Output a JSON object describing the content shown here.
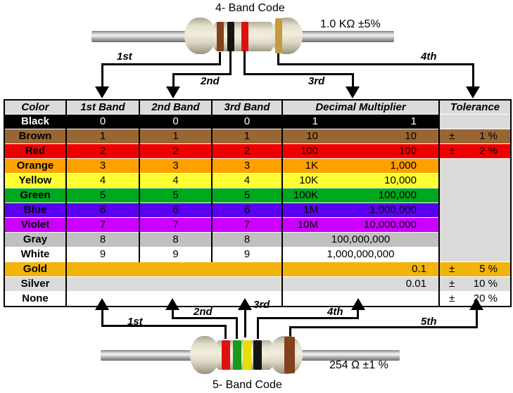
{
  "four_band": {
    "title": "4- Band Code",
    "spec": "1.0 KΩ  ±5%",
    "labels": [
      "1st",
      "2nd",
      "3rd",
      "4th"
    ],
    "bands": [
      "brown",
      "black",
      "red",
      "gold"
    ]
  },
  "five_band": {
    "title": "5- Band Code",
    "spec": "254 Ω  ±1 %",
    "labels": [
      "1st",
      "2nd",
      "3rd",
      "4th",
      "5th"
    ],
    "bands": [
      "red",
      "green",
      "yellow",
      "black",
      "brown"
    ]
  },
  "band_colors": {
    "brown": "#81421c",
    "black": "#141414",
    "red": "#dd1111",
    "gold": "#c79a3f",
    "green": "#1a9a1a",
    "yellow": "#e6de08"
  },
  "table": {
    "headers": [
      "Color",
      "1st Band",
      "2nd Band",
      "3rd Band",
      "Decimal Multiplier",
      "Tolerance"
    ],
    "rows": [
      {
        "name": "Black",
        "bg": "#000000",
        "fg": "#ffffff",
        "bands_merged": false,
        "b1": "0",
        "b2": "0",
        "b3": "0",
        "mult": {
          "layout": "split",
          "short": "1",
          "full": "1"
        },
        "tol": {
          "type": "own",
          "bg": "#dbdbdb",
          "pm": "",
          "val": ""
        }
      },
      {
        "name": "Brown",
        "bg": "#996633",
        "fg": "#000000",
        "bands_merged": false,
        "b1": "1",
        "b2": "1",
        "b3": "1",
        "mult": {
          "layout": "split",
          "short": "10",
          "full": "10"
        },
        "tol": {
          "type": "own",
          "bg": "#996633",
          "pm": "±",
          "val": "1 %"
        }
      },
      {
        "name": "Red",
        "bg": "#ee0000",
        "fg": "#000000",
        "bands_merged": false,
        "b1": "2",
        "b2": "2",
        "b3": "2",
        "mult": {
          "layout": "split",
          "short": "100",
          "full": "100"
        },
        "tol": {
          "type": "own",
          "bg": "#ee0000",
          "pm": "±",
          "val": "2 %"
        }
      },
      {
        "name": "Orange",
        "bg": "#ffa000",
        "fg": "#000000",
        "bands_merged": false,
        "b1": "3",
        "b2": "3",
        "b3": "3",
        "mult": {
          "layout": "split",
          "short": "1K",
          "full": "1,000"
        },
        "tol": {
          "type": "span",
          "rows": 7,
          "bg": "#dbdbdb"
        }
      },
      {
        "name": "Yellow",
        "bg": "#ffff33",
        "fg": "#000000",
        "bands_merged": false,
        "b1": "4",
        "b2": "4",
        "b3": "4",
        "mult": {
          "layout": "split",
          "short": "10K",
          "full": "10,000"
        },
        "tol": {
          "type": "none"
        }
      },
      {
        "name": "Green",
        "bg": "#00a81e",
        "fg": "#000000",
        "bands_merged": false,
        "b1": "5",
        "b2": "5",
        "b3": "5",
        "mult": {
          "layout": "split",
          "short": "100K",
          "full": "100,000"
        },
        "tol": {
          "type": "none"
        }
      },
      {
        "name": "Blue",
        "bg": "#5a00f0",
        "fg": "#000000",
        "bands_merged": false,
        "b1": "6",
        "b2": "6",
        "b3": "6",
        "mult": {
          "layout": "split",
          "short": "1M",
          "full": "1,000,000"
        },
        "tol": {
          "type": "none"
        }
      },
      {
        "name": "Violet",
        "bg": "#cc00ff",
        "fg": "#000000",
        "bands_merged": false,
        "b1": "7",
        "b2": "7",
        "b3": "7",
        "mult": {
          "layout": "split",
          "short": "10M",
          "full": "10,000,000"
        },
        "tol": {
          "type": "none"
        }
      },
      {
        "name": "Gray",
        "bg": "#c0c0c0",
        "fg": "#000000",
        "bands_merged": false,
        "b1": "8",
        "b2": "8",
        "b3": "8",
        "mult": {
          "layout": "center",
          "full": "100,000,000"
        },
        "tol": {
          "type": "none"
        }
      },
      {
        "name": "White",
        "bg": "#ffffff",
        "fg": "#000000",
        "bands_merged": false,
        "b1": "9",
        "b2": "9",
        "b3": "9",
        "mult": {
          "layout": "center",
          "full": "1,000,000,000"
        },
        "tol": {
          "type": "none"
        }
      },
      {
        "name": "Gold",
        "bg": "#f2b40a",
        "fg": "#000000",
        "bands_merged": true,
        "mult": {
          "layout": "right",
          "full": "0.1"
        },
        "tol": {
          "type": "own",
          "bg": "#f2b40a",
          "pm": "±",
          "val": "5 %"
        }
      },
      {
        "name": "Silver",
        "bg": "#dbdbdb",
        "fg": "#000000",
        "bands_merged": true,
        "mult": {
          "layout": "right",
          "full": "0.01"
        },
        "tol": {
          "type": "own",
          "bg": "#dbdbdb",
          "pm": "±",
          "val": "10 %"
        }
      },
      {
        "name": "None",
        "bg": "#ffffff",
        "fg": "#000000",
        "bands_merged": true,
        "mult": {
          "layout": "right",
          "full": ""
        },
        "tol": {
          "type": "own",
          "bg": "#ffffff",
          "pm": "±",
          "val": "20 %"
        }
      }
    ]
  }
}
